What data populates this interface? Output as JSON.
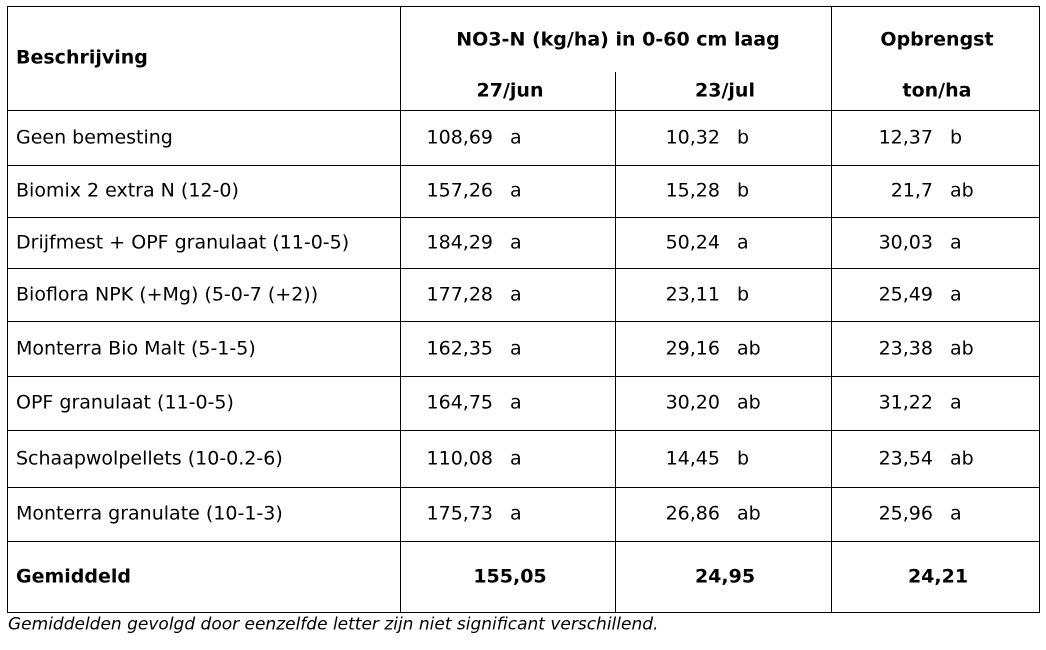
{
  "table": {
    "header": {
      "description": "Beschrijving",
      "group": "NO3-N (kg/ha) in 0-60 cm laag",
      "yield": "Opbrengst",
      "dates": [
        "27/jun",
        "23/jul"
      ],
      "unit": "ton/ha"
    },
    "rows": [
      {
        "name": "Geen bemesting",
        "cells": [
          {
            "value": "108,69",
            "letter": "a"
          },
          {
            "value": "10,32",
            "letter": "b"
          },
          {
            "value": "12,37",
            "letter": "b"
          }
        ]
      },
      {
        "name": "Biomix 2 extra N (12-0)",
        "cells": [
          {
            "value": "157,26",
            "letter": "a"
          },
          {
            "value": "15,28",
            "letter": "b"
          },
          {
            "value": "21,7",
            "letter": "ab"
          }
        ]
      },
      {
        "name": "Drijfmest + OPF granulaat (11-0-5)",
        "cells": [
          {
            "value": "184,29",
            "letter": "a"
          },
          {
            "value": "50,24",
            "letter": "a"
          },
          {
            "value": "30,03",
            "letter": "a"
          }
        ]
      },
      {
        "name": "Bioflora NPK (+Mg) (5-0-7 (+2))",
        "cells": [
          {
            "value": "177,28",
            "letter": "a"
          },
          {
            "value": "23,11",
            "letter": "b"
          },
          {
            "value": "25,49",
            "letter": "a"
          }
        ]
      },
      {
        "name": "Monterra Bio Malt (5-1-5)",
        "cells": [
          {
            "value": "162,35",
            "letter": "a"
          },
          {
            "value": "29,16",
            "letter": "ab"
          },
          {
            "value": "23,38",
            "letter": "ab"
          }
        ]
      },
      {
        "name": "OPF granulaat (11-0-5)",
        "cells": [
          {
            "value": "164,75",
            "letter": "a"
          },
          {
            "value": "30,20",
            "letter": "ab"
          },
          {
            "value": "31,22",
            "letter": "a"
          }
        ]
      },
      {
        "name": "Schaapwolpellets (10-0.2-6)",
        "cells": [
          {
            "value": "110,08",
            "letter": "a"
          },
          {
            "value": "14,45",
            "letter": "b"
          },
          {
            "value": "23,54",
            "letter": "ab"
          }
        ]
      },
      {
        "name": "Monterra granulate (10-1-3)",
        "cells": [
          {
            "value": "175,73",
            "letter": "a"
          },
          {
            "value": "26,86",
            "letter": "ab"
          },
          {
            "value": "25,96",
            "letter": "a"
          }
        ]
      }
    ],
    "total": {
      "label": "Gemiddeld",
      "values": [
        "155,05",
        "24,95",
        "24,21"
      ]
    }
  },
  "footnote": "Gemiddelden gevolgd door eenzelfde letter zijn niet significant verschillend."
}
